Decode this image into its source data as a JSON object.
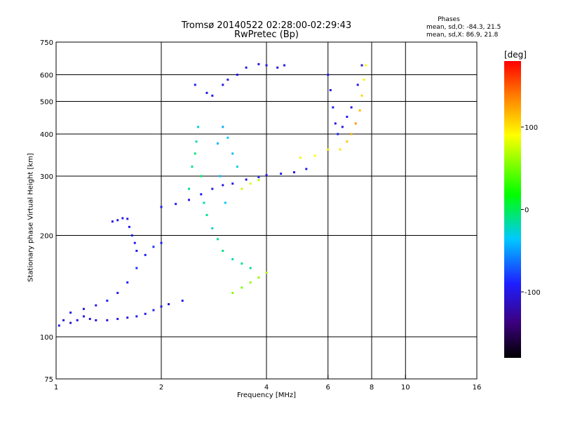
{
  "header": {
    "title_line1": "Tromsø 20140522 02:28:00-02:29:43",
    "title_line2": "RwPretec (Bp)",
    "phases_title": "Phases",
    "phases_o": "mean, sd,O: -84.3, 21.5",
    "phases_x": "mean, sd,X:  86.9, 21.8"
  },
  "colorbar": {
    "label": "[deg]",
    "range": [
      -180,
      180
    ],
    "ticks": [
      {
        "value": 100,
        "label": "100"
      },
      {
        "value": 0,
        "label": "0"
      },
      {
        "value": -100,
        "label": "-100"
      }
    ]
  },
  "chart_data": {
    "type": "scatter",
    "title": "Tromsø 20140522 02:28:00-02:29:43",
    "subtitle": "RwPretec (Bp)",
    "xlabel": "Frequency [MHz]",
    "ylabel": "Stationary phase Virtual Height [km]",
    "x_scale": "log",
    "y_scale": "log",
    "xlim": [
      1,
      16
    ],
    "ylim": [
      75,
      750
    ],
    "grid": true,
    "x_ticks": [
      {
        "value": 1,
        "label": "1"
      },
      {
        "value": 2,
        "label": "2"
      },
      {
        "value": 4,
        "label": "4"
      },
      {
        "value": 6,
        "label": "6"
      },
      {
        "value": 8,
        "label": "8"
      },
      {
        "value": 10,
        "label": "10"
      },
      {
        "value": 16,
        "label": "16"
      }
    ],
    "y_ticks": [
      {
        "value": 75,
        "label": "75"
      },
      {
        "value": 100,
        "label": "100"
      },
      {
        "value": 200,
        "label": "200"
      },
      {
        "value": 300,
        "label": "300"
      },
      {
        "value": 400,
        "label": "400"
      },
      {
        "value": 500,
        "label": "500"
      },
      {
        "value": 600,
        "label": "600"
      },
      {
        "value": 750,
        "label": "750"
      }
    ],
    "grid_x": [
      2,
      4,
      6,
      8,
      10
    ],
    "grid_y": [
      100,
      200,
      300,
      400,
      500,
      600
    ],
    "color_scale": {
      "label": "[deg]",
      "min": -180,
      "max": 180
    },
    "series": [
      {
        "points": [
          [
            1.02,
            108,
            -95
          ],
          [
            1.05,
            112,
            -100
          ],
          [
            1.1,
            110,
            -105
          ],
          [
            1.15,
            112,
            -100
          ],
          [
            1.2,
            115,
            -95
          ],
          [
            1.25,
            113,
            -100
          ],
          [
            1.3,
            112,
            -105
          ],
          [
            1.4,
            112,
            -100
          ],
          [
            1.5,
            113,
            -95
          ],
          [
            1.6,
            114,
            -100
          ],
          [
            1.7,
            115,
            -95
          ],
          [
            1.8,
            117,
            -100
          ],
          [
            1.9,
            120,
            -95
          ],
          [
            2.0,
            123,
            -100
          ],
          [
            2.1,
            125,
            -105
          ],
          [
            2.3,
            128,
            -95
          ]
        ]
      },
      {
        "points": [
          [
            1.1,
            118,
            -95
          ],
          [
            1.2,
            121,
            -100
          ],
          [
            1.3,
            124,
            -95
          ],
          [
            1.4,
            128,
            -90
          ],
          [
            1.5,
            135,
            -95
          ],
          [
            1.6,
            145,
            -90
          ],
          [
            1.7,
            160,
            -85
          ],
          [
            1.8,
            175,
            -90
          ],
          [
            1.9,
            185,
            -85
          ],
          [
            2.0,
            190,
            -90
          ]
        ]
      },
      {
        "points": [
          [
            1.45,
            220,
            -95
          ],
          [
            1.5,
            222,
            -100
          ],
          [
            1.55,
            225,
            -95
          ],
          [
            1.6,
            224,
            -100
          ],
          [
            1.62,
            212,
            -95
          ],
          [
            1.65,
            200,
            -90
          ],
          [
            1.68,
            190,
            -95
          ],
          [
            1.7,
            180,
            -95
          ]
        ]
      },
      {
        "points": [
          [
            2.0,
            243,
            -95
          ],
          [
            2.2,
            248,
            -95
          ],
          [
            2.4,
            255,
            -100
          ],
          [
            2.6,
            265,
            -95
          ],
          [
            2.8,
            275,
            -95
          ],
          [
            3.0,
            282,
            -100
          ],
          [
            3.2,
            285,
            -95
          ],
          [
            3.5,
            293,
            -100
          ],
          [
            3.8,
            298,
            -95
          ],
          [
            4.0,
            302,
            -100
          ],
          [
            4.4,
            305,
            -95
          ],
          [
            4.8,
            308,
            -100
          ],
          [
            5.2,
            315,
            -95
          ]
        ]
      },
      {
        "points": [
          [
            2.4,
            275,
            -10
          ],
          [
            2.45,
            320,
            -15
          ],
          [
            2.5,
            350,
            -5
          ],
          [
            2.52,
            380,
            -20
          ],
          [
            2.55,
            420,
            -25
          ],
          [
            2.6,
            300,
            -5
          ],
          [
            2.65,
            250,
            -20
          ],
          [
            2.7,
            230,
            -15
          ],
          [
            2.8,
            210,
            -25
          ],
          [
            2.9,
            195,
            -15
          ],
          [
            3.0,
            180,
            -10
          ],
          [
            3.2,
            170,
            -20
          ],
          [
            3.4,
            165,
            -15
          ],
          [
            3.6,
            160,
            -10
          ]
        ]
      },
      {
        "points": [
          [
            2.9,
            375,
            -40
          ],
          [
            3.0,
            420,
            -45
          ],
          [
            3.1,
            390,
            -35
          ],
          [
            3.2,
            350,
            -40
          ],
          [
            3.3,
            320,
            -30
          ],
          [
            2.95,
            300,
            -40
          ],
          [
            3.05,
            250,
            -35
          ]
        ]
      },
      {
        "points": [
          [
            3.2,
            135,
            55
          ],
          [
            3.4,
            140,
            55
          ],
          [
            3.6,
            145,
            60
          ],
          [
            3.8,
            150,
            60
          ],
          [
            4.0,
            155,
            65
          ],
          [
            3.4,
            275,
            75
          ],
          [
            3.6,
            285,
            80
          ],
          [
            3.8,
            292,
            70
          ],
          [
            5.0,
            340,
            85
          ],
          [
            5.5,
            345,
            90
          ],
          [
            6.0,
            360,
            95
          ]
        ]
      },
      {
        "points": [
          [
            2.5,
            560,
            -95
          ],
          [
            2.7,
            530,
            -100
          ],
          [
            2.8,
            520,
            -95
          ],
          [
            3.0,
            560,
            -100
          ],
          [
            3.1,
            580,
            -95
          ],
          [
            3.3,
            600,
            -100
          ],
          [
            3.5,
            630,
            -95
          ],
          [
            3.8,
            645,
            -100
          ],
          [
            4.0,
            640,
            -95
          ],
          [
            4.3,
            630,
            -100
          ],
          [
            4.5,
            640,
            -95
          ]
        ]
      },
      {
        "points": [
          [
            6.0,
            600,
            -95
          ],
          [
            6.1,
            540,
            -100
          ],
          [
            6.2,
            480,
            -95
          ],
          [
            6.3,
            430,
            -100
          ],
          [
            6.4,
            400,
            -95
          ],
          [
            6.6,
            420,
            -100
          ],
          [
            6.8,
            450,
            -95
          ],
          [
            7.0,
            480,
            -100
          ],
          [
            7.3,
            560,
            -95
          ],
          [
            7.5,
            640,
            -100
          ]
        ]
      },
      {
        "points": [
          [
            6.5,
            360,
            100
          ],
          [
            6.8,
            380,
            110
          ],
          [
            7.0,
            400,
            120
          ],
          [
            7.2,
            430,
            130
          ],
          [
            7.4,
            470,
            115
          ],
          [
            7.5,
            520,
            105
          ],
          [
            7.6,
            580,
            95
          ],
          [
            7.7,
            640,
            90
          ]
        ]
      }
    ]
  }
}
